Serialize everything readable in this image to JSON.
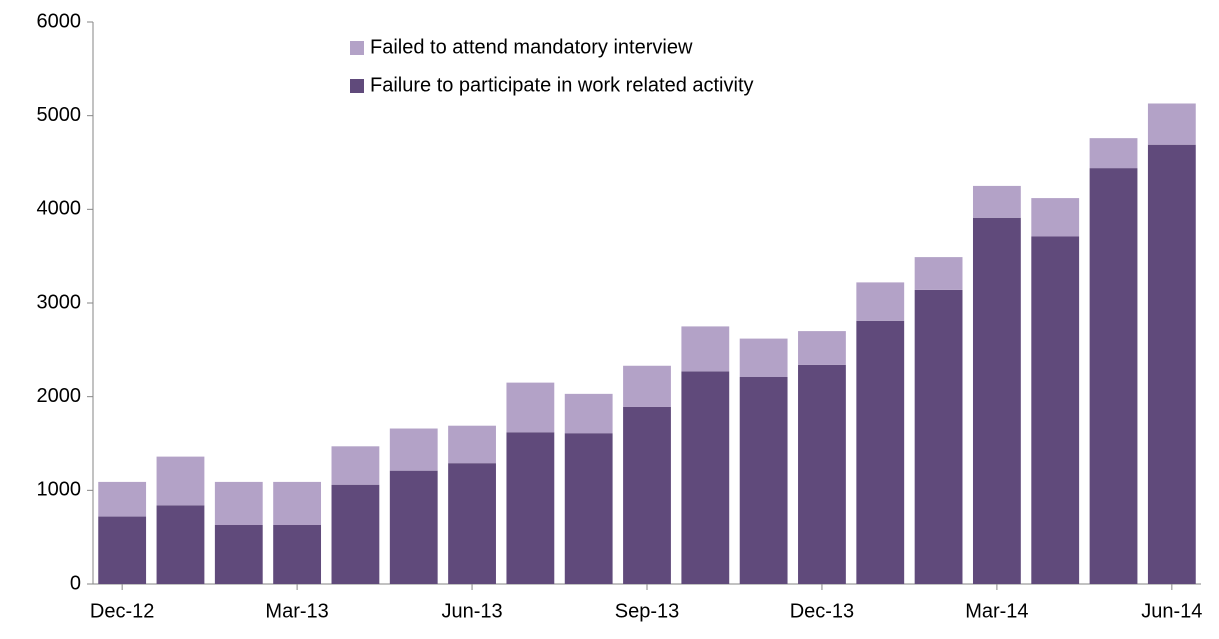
{
  "chart_data": {
    "type": "stacked-bar",
    "categories": [
      "Dec-12",
      null,
      null,
      "Mar-13",
      null,
      null,
      "Jun-13",
      null,
      null,
      "Sep-13",
      null,
      null,
      "Dec-13",
      null,
      null,
      "Mar-14",
      null,
      null,
      "Jun-14"
    ],
    "series": [
      {
        "name": "Failure to participate in work related activity",
        "color": "#604a7b",
        "values": [
          720,
          840,
          630,
          630,
          1060,
          1210,
          1290,
          1620,
          1610,
          1890,
          2270,
          2210,
          2340,
          2810,
          3140,
          3910,
          3710,
          4440,
          4690
        ]
      },
      {
        "name": "Failed to attend mandatory interview",
        "color": "#b3a2c7",
        "values": [
          370,
          520,
          460,
          460,
          410,
          450,
          400,
          530,
          420,
          440,
          480,
          410,
          360,
          410,
          350,
          340,
          410,
          320,
          440
        ]
      }
    ],
    "ylim": [
      0,
      6000
    ],
    "yticks": [
      0,
      1000,
      2000,
      3000,
      4000,
      5000,
      6000
    ],
    "grid": false,
    "legend": "top"
  }
}
